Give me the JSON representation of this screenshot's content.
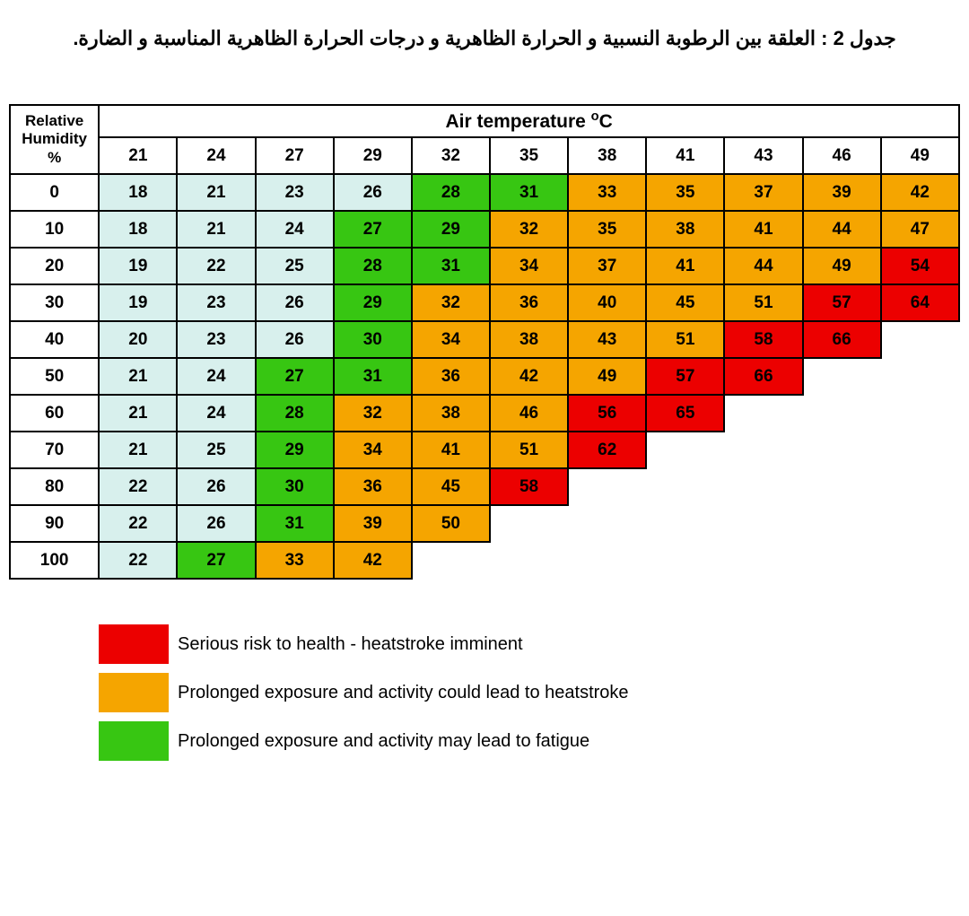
{
  "title": "جدول 2 : العلقة بين الرطوبة النسبية و الحرارة الظاهرية و درجات الحرارة الظاهرية المناسبة و الضارة.",
  "table": {
    "rh_header_html": "Relative<br>Humidity<br>%",
    "air_header_html": "Air temperature <sup>o</sup>C",
    "temp_columns": [
      21,
      24,
      27,
      29,
      32,
      35,
      38,
      41,
      43,
      46,
      49
    ],
    "humidity_values": [
      0,
      10,
      20,
      30,
      40,
      50,
      60,
      70,
      80,
      90,
      100
    ],
    "cells": [
      [
        {
          "v": 18,
          "c": "cyan"
        },
        {
          "v": 21,
          "c": "cyan"
        },
        {
          "v": 23,
          "c": "cyan"
        },
        {
          "v": 26,
          "c": "cyan"
        },
        {
          "v": 28,
          "c": "green"
        },
        {
          "v": 31,
          "c": "green"
        },
        {
          "v": 33,
          "c": "orange"
        },
        {
          "v": 35,
          "c": "orange"
        },
        {
          "v": 37,
          "c": "orange"
        },
        {
          "v": 39,
          "c": "orange"
        },
        {
          "v": 42,
          "c": "orange"
        }
      ],
      [
        {
          "v": 18,
          "c": "cyan"
        },
        {
          "v": 21,
          "c": "cyan"
        },
        {
          "v": 24,
          "c": "cyan"
        },
        {
          "v": 27,
          "c": "green"
        },
        {
          "v": 29,
          "c": "green"
        },
        {
          "v": 32,
          "c": "orange"
        },
        {
          "v": 35,
          "c": "orange"
        },
        {
          "v": 38,
          "c": "orange"
        },
        {
          "v": 41,
          "c": "orange"
        },
        {
          "v": 44,
          "c": "orange"
        },
        {
          "v": 47,
          "c": "orange"
        }
      ],
      [
        {
          "v": 19,
          "c": "cyan"
        },
        {
          "v": 22,
          "c": "cyan"
        },
        {
          "v": 25,
          "c": "cyan"
        },
        {
          "v": 28,
          "c": "green"
        },
        {
          "v": 31,
          "c": "green"
        },
        {
          "v": 34,
          "c": "orange"
        },
        {
          "v": 37,
          "c": "orange"
        },
        {
          "v": 41,
          "c": "orange"
        },
        {
          "v": 44,
          "c": "orange"
        },
        {
          "v": 49,
          "c": "orange"
        },
        {
          "v": 54,
          "c": "red"
        }
      ],
      [
        {
          "v": 19,
          "c": "cyan"
        },
        {
          "v": 23,
          "c": "cyan"
        },
        {
          "v": 26,
          "c": "cyan"
        },
        {
          "v": 29,
          "c": "green"
        },
        {
          "v": 32,
          "c": "orange"
        },
        {
          "v": 36,
          "c": "orange"
        },
        {
          "v": 40,
          "c": "orange"
        },
        {
          "v": 45,
          "c": "orange"
        },
        {
          "v": 51,
          "c": "orange"
        },
        {
          "v": 57,
          "c": "red"
        },
        {
          "v": 64,
          "c": "red"
        }
      ],
      [
        {
          "v": 20,
          "c": "cyan"
        },
        {
          "v": 23,
          "c": "cyan"
        },
        {
          "v": 26,
          "c": "cyan"
        },
        {
          "v": 30,
          "c": "green"
        },
        {
          "v": 34,
          "c": "orange"
        },
        {
          "v": 38,
          "c": "orange"
        },
        {
          "v": 43,
          "c": "orange"
        },
        {
          "v": 51,
          "c": "orange"
        },
        {
          "v": 58,
          "c": "red"
        },
        {
          "v": 66,
          "c": "red"
        },
        null
      ],
      [
        {
          "v": 21,
          "c": "cyan"
        },
        {
          "v": 24,
          "c": "cyan"
        },
        {
          "v": 27,
          "c": "green"
        },
        {
          "v": 31,
          "c": "green"
        },
        {
          "v": 36,
          "c": "orange"
        },
        {
          "v": 42,
          "c": "orange"
        },
        {
          "v": 49,
          "c": "orange"
        },
        {
          "v": 57,
          "c": "red"
        },
        {
          "v": 66,
          "c": "red"
        },
        null,
        null
      ],
      [
        {
          "v": 21,
          "c": "cyan"
        },
        {
          "v": 24,
          "c": "cyan"
        },
        {
          "v": 28,
          "c": "green"
        },
        {
          "v": 32,
          "c": "orange"
        },
        {
          "v": 38,
          "c": "orange"
        },
        {
          "v": 46,
          "c": "orange"
        },
        {
          "v": 56,
          "c": "red"
        },
        {
          "v": 65,
          "c": "red"
        },
        null,
        null,
        null
      ],
      [
        {
          "v": 21,
          "c": "cyan"
        },
        {
          "v": 25,
          "c": "cyan"
        },
        {
          "v": 29,
          "c": "green"
        },
        {
          "v": 34,
          "c": "orange"
        },
        {
          "v": 41,
          "c": "orange"
        },
        {
          "v": 51,
          "c": "orange"
        },
        {
          "v": 62,
          "c": "red"
        },
        null,
        null,
        null,
        null
      ],
      [
        {
          "v": 22,
          "c": "cyan"
        },
        {
          "v": 26,
          "c": "cyan"
        },
        {
          "v": 30,
          "c": "green"
        },
        {
          "v": 36,
          "c": "orange"
        },
        {
          "v": 45,
          "c": "orange"
        },
        {
          "v": 58,
          "c": "red"
        },
        null,
        null,
        null,
        null,
        null
      ],
      [
        {
          "v": 22,
          "c": "cyan"
        },
        {
          "v": 26,
          "c": "cyan"
        },
        {
          "v": 31,
          "c": "green"
        },
        {
          "v": 39,
          "c": "orange"
        },
        {
          "v": 50,
          "c": "orange"
        },
        null,
        null,
        null,
        null,
        null,
        null
      ],
      [
        {
          "v": 22,
          "c": "cyan"
        },
        {
          "v": 27,
          "c": "green"
        },
        {
          "v": 33,
          "c": "orange"
        },
        {
          "v": 42,
          "c": "orange"
        },
        null,
        null,
        null,
        null,
        null,
        null,
        null
      ]
    ]
  },
  "colors": {
    "cyan": "#d8f0ed",
    "green": "#37c612",
    "orange": "#f5a500",
    "red": "#ec0000",
    "border": "#000000",
    "white": "#ffffff"
  },
  "legend": [
    {
      "color": "red",
      "label": "Serious risk to health - heatstroke imminent"
    },
    {
      "color": "orange",
      "label": "Prolonged exposure and activity could lead to heatstroke"
    },
    {
      "color": "green",
      "label": "Prolonged exposure and activity may lead to fatigue"
    }
  ]
}
